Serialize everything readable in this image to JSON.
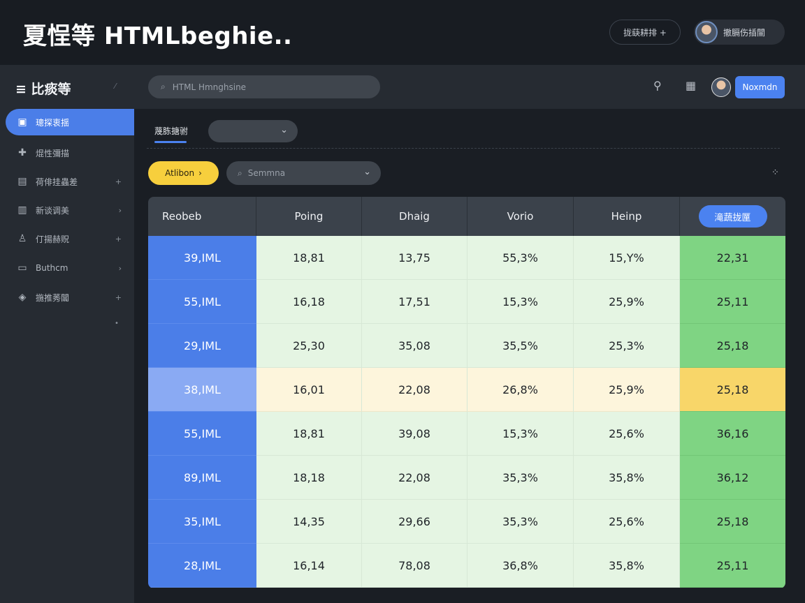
{
  "app": {
    "title": "夏悜等 HTMLbeghie.."
  },
  "topbar": {
    "pill_label": "拢蒛耕排 +",
    "user_label": "撤膈伤插闓"
  },
  "sidebar": {
    "title": "≡ 比痰等",
    "items": [
      {
        "label": "璁探衷揺",
        "icon": "window-icon",
        "active": true
      },
      {
        "label": "焜性彌描",
        "icon": "plus-icon",
        "active": false
      },
      {
        "label": "荷俳挂蟲差",
        "icon": "calendar-icon",
        "active": false
      },
      {
        "label": "新谈调美",
        "icon": "chart-icon",
        "active": false
      },
      {
        "label": "仃揚赫贶",
        "icon": "user-icon",
        "active": false
      },
      {
        "label": "Buthcm",
        "icon": "document-icon",
        "active": false
      },
      {
        "label": "揓推莠闒",
        "icon": "diamond-icon",
        "active": false
      }
    ]
  },
  "header": {
    "search_placeholder": "HTML Hmnghsine",
    "button_label": "Noxmdn"
  },
  "toolbar": {
    "tab_label": "蔑胨搪驸",
    "filter_label": "Atlibon",
    "search_placeholder": "Semmna"
  },
  "table": {
    "columns": [
      "Reobeb",
      "Poing",
      "Dhaig",
      "Vorio",
      "Heinp"
    ],
    "action_label": "滝蔬拢匰",
    "rows": [
      {
        "cells": [
          "39,IML",
          "18,81",
          "13,75",
          "55,3%",
          "15,Y%",
          "22,31"
        ],
        "highlight": false
      },
      {
        "cells": [
          "55,IML",
          "16,18",
          "17,51",
          "15,3%",
          "25,9%",
          "25,11"
        ],
        "highlight": false
      },
      {
        "cells": [
          "29,IML",
          "25,30",
          "35,08",
          "35,5%",
          "25,3%",
          "25,18"
        ],
        "highlight": false
      },
      {
        "cells": [
          "38,IML",
          "16,01",
          "22,08",
          "26,8%",
          "25,9%",
          "25,18"
        ],
        "highlight": true
      },
      {
        "cells": [
          "55,IML",
          "18,81",
          "39,08",
          "15,3%",
          "25,6%",
          "36,16"
        ],
        "highlight": false
      },
      {
        "cells": [
          "89,IML",
          "18,18",
          "22,08",
          "35,3%",
          "35,8%",
          "36,12"
        ],
        "highlight": false
      },
      {
        "cells": [
          "35,IML",
          "14,35",
          "29,66",
          "35,3%",
          "25,6%",
          "25,18"
        ],
        "highlight": false
      },
      {
        "cells": [
          "28,IML",
          "16,14",
          "78,08",
          "36,8%",
          "35,8%",
          "25,11"
        ],
        "highlight": false
      }
    ]
  },
  "colors": {
    "accent_blue": "#4b82f0",
    "filter_yellow": "#f7cf3d",
    "cell_green": "#e5f5e3",
    "last_column_green": "#7fd483"
  }
}
